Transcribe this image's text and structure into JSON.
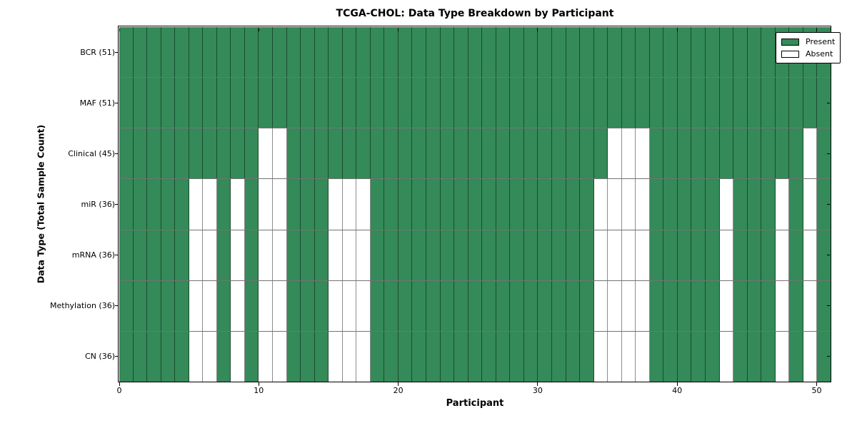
{
  "chart_data": {
    "type": "heatmap",
    "title": "TCGA-CHOL: Data Type Breakdown by Participant",
    "xlabel": "Participant",
    "ylabel": "Data Type (Total Sample Count)",
    "n_participants": 51,
    "x_range": [
      0,
      51
    ],
    "x_ticks": [
      0,
      10,
      20,
      30,
      40,
      50
    ],
    "present_color": "#348A58",
    "absent_color": "#FFFFFF",
    "grid": "cell-borders",
    "legend": {
      "position": "upper-right",
      "items": [
        {
          "label": "Present",
          "color": "#348A58"
        },
        {
          "label": "Absent",
          "color": "#FFFFFF"
        }
      ]
    },
    "rows": [
      {
        "key": "bcr",
        "label": "BCR (51)",
        "total_samples": 51,
        "absent_participants": []
      },
      {
        "key": "maf",
        "label": "MAF (51)",
        "total_samples": 51,
        "absent_participants": []
      },
      {
        "key": "clinical",
        "label": "Clinical (45)",
        "total_samples": 45,
        "absent_participants": [
          10,
          11,
          35,
          36,
          37,
          49
        ]
      },
      {
        "key": "mir",
        "label": "miR (36)",
        "total_samples": 36,
        "absent_participants": [
          5,
          6,
          8,
          10,
          11,
          15,
          16,
          17,
          34,
          35,
          36,
          37,
          43,
          47,
          49
        ]
      },
      {
        "key": "mrna",
        "label": "mRNA (36)",
        "total_samples": 36,
        "absent_participants": [
          5,
          6,
          8,
          10,
          11,
          15,
          16,
          17,
          34,
          35,
          36,
          37,
          43,
          47,
          49
        ]
      },
      {
        "key": "methylation",
        "label": "Methylation (36)",
        "total_samples": 36,
        "absent_participants": [
          5,
          6,
          8,
          10,
          11,
          15,
          16,
          17,
          34,
          35,
          36,
          37,
          43,
          47,
          49
        ]
      },
      {
        "key": "cn",
        "label": "CN (36)",
        "total_samples": 36,
        "absent_participants": [
          5,
          6,
          8,
          10,
          11,
          15,
          16,
          17,
          34,
          35,
          36,
          37,
          43,
          47,
          49
        ]
      }
    ]
  }
}
